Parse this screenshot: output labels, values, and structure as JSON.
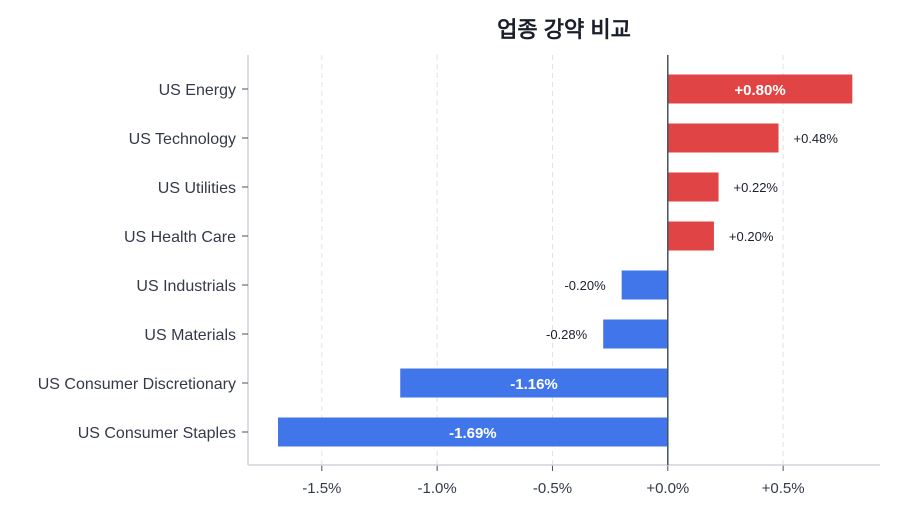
{
  "chart_data": {
    "type": "bar",
    "orientation": "horizontal",
    "title": "업종 강약 비교",
    "categories": [
      "US Energy",
      "US Technology",
      "US Utilities",
      "US Health Care",
      "US Industrials",
      "US Materials",
      "US Consumer Discretionary",
      "US Consumer Staples"
    ],
    "values": [
      0.8,
      0.48,
      0.22,
      0.2,
      -0.2,
      -0.28,
      -1.16,
      -1.69
    ],
    "data_labels": [
      "+0.80%",
      "+0.48%",
      "+0.22%",
      "+0.20%",
      "-0.20%",
      "-0.28%",
      "-1.16%",
      "-1.69%"
    ],
    "xlabel": "",
    "ylabel": "",
    "xlim": [
      -1.82,
      0.92
    ],
    "xticks": [
      -1.5,
      -1.0,
      -0.5,
      0.0,
      0.5
    ],
    "xtick_labels": [
      "-1.5%",
      "-1.0%",
      "-0.5%",
      "+0.0%",
      "+0.5%"
    ],
    "grid": "vertical dashed",
    "colors": {
      "positive": "#e04444",
      "negative": "#4076ea",
      "zero_line": "#4a5060",
      "axis": "#cfd3da",
      "grid": "#e2e2e2",
      "text": "#333a48"
    }
  }
}
